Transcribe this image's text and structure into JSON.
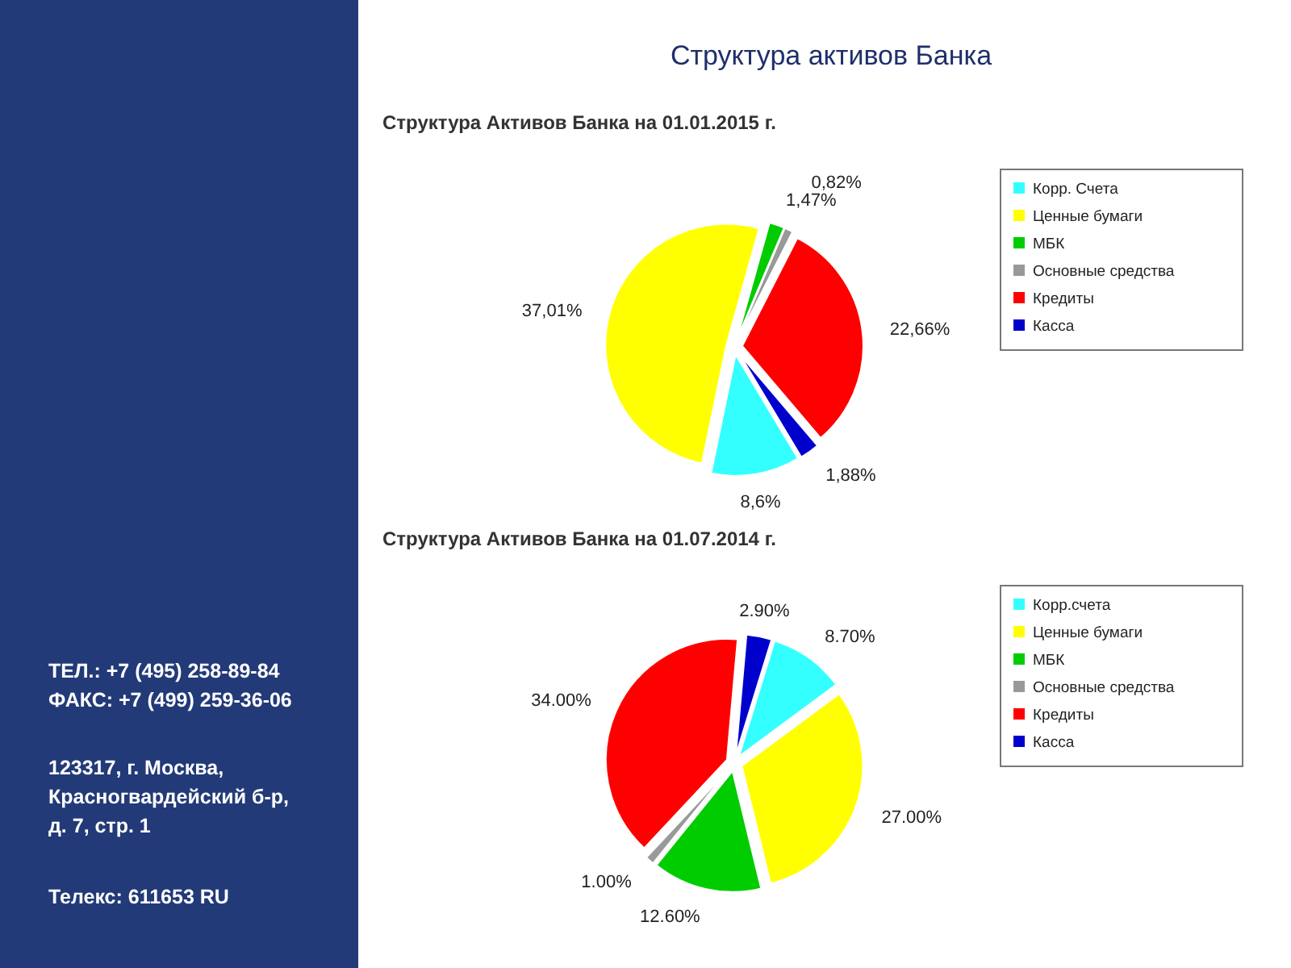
{
  "chart_data": [
    {
      "type": "other",
      "title": "Структура активов Банка",
      "annotations": [
        "ТЕЛ.: +7 (495) 258-89-84",
        "ФАКС: +7 (499) 259-36-06",
        "123317, г. Москва,",
        "Красногвардейский б-р,",
        "д. 7, стр. 1",
        "Телекс: 611653 RU"
      ]
    },
    {
      "type": "pie",
      "title": "Структура Активов Банка на 01.01.2015 г.",
      "categories": [
        "Корр. Счета",
        "Ценные бумаги",
        "МБК",
        "Основные средства",
        "Кредиты",
        "Касса"
      ],
      "values": [
        8.6,
        37.01,
        1.47,
        0.82,
        22.66,
        1.88
      ],
      "value_labels": [
        "8,6%",
        "37,01%",
        "1,47%",
        "0,82%",
        "22,66%",
        "1,88%"
      ],
      "colors": [
        "#33ffff",
        "#ffff00",
        "#00cc00",
        "#999999",
        "#ff0000",
        "#0000cc"
      ],
      "legend": "top right"
    },
    {
      "type": "pie",
      "title": "Структура Активов Банка на 01.07.2014 г.",
      "categories": [
        "Корр.счета",
        "Ценные бумаги",
        "МБК",
        "Основные средства",
        "Кредиты",
        "Касса"
      ],
      "values": [
        8.7,
        27.0,
        12.6,
        1.0,
        34.0,
        2.9
      ],
      "value_labels": [
        "8.70%",
        "27.00%",
        "12.60%",
        "1.00%",
        "34.00%",
        "2.90%"
      ],
      "colors": [
        "#33ffff",
        "#ffff00",
        "#00cc00",
        "#999999",
        "#ff0000",
        "#0000cc"
      ],
      "legend": "top right"
    }
  ]
}
